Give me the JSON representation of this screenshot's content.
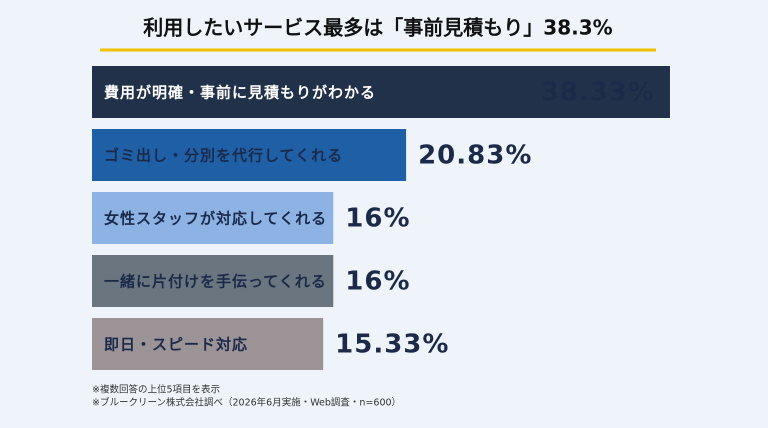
{
  "chart_data": {
    "type": "bar",
    "orientation": "horizontal",
    "title": "利用したいサービス最多は「事前見積もり」38.3%",
    "categories": [
      "費用が明確・事前に見積もりがわかる",
      "ゴミ出し・分別を代行してくれる",
      "女性スタッフが対応してくれる",
      "一緒に片付けを手伝ってくれる",
      "即日・スピード対応"
    ],
    "values": [
      38.33,
      20.83,
      16,
      16,
      15.33
    ],
    "value_labels": [
      "38.33%",
      "20.83%",
      "16%",
      "16%",
      "15.33%"
    ],
    "colors": [
      "#22314a",
      "#1f5fa6",
      "#8cb3e3",
      "#6b7580",
      "#9b9395"
    ],
    "notes": [
      "※複数回答の上位5項目を表示",
      "※ブルークリーン株式会社調べ（2026年6月実施・Web調査・n=600）"
    ]
  }
}
